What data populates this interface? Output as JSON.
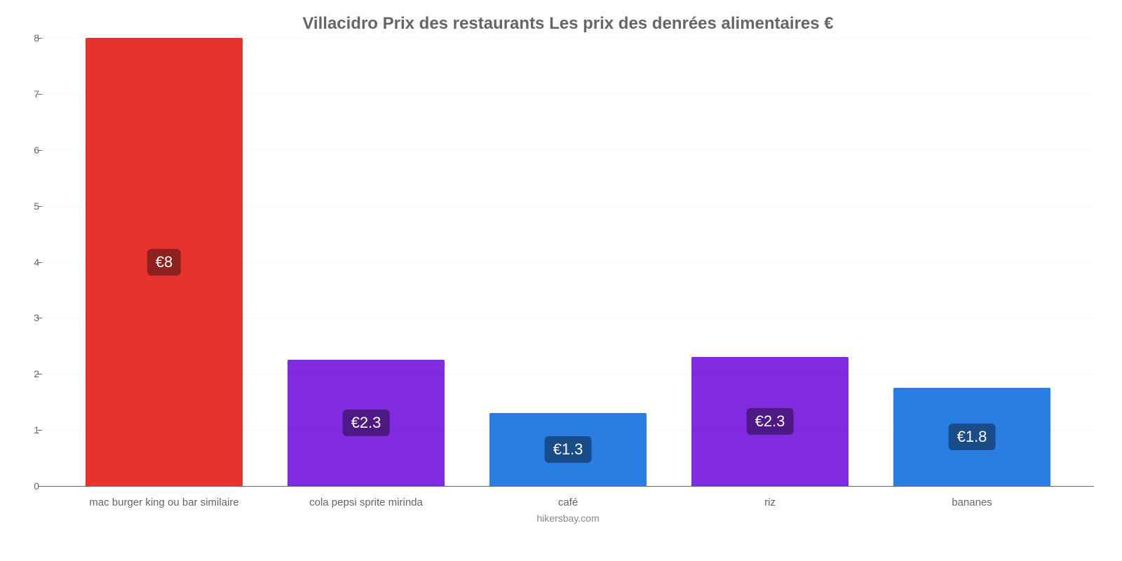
{
  "chart": {
    "type": "bar",
    "title": "Villacidro Prix des restaurants Les prix des denrées alimentaires €",
    "title_fontsize": 24,
    "title_color": "#666666",
    "credit": "hikersbay.com",
    "credit_color": "#888888",
    "y": {
      "min": 0,
      "max": 8,
      "tick_step": 1,
      "tick_color": "#666666",
      "tick_fontsize": 14,
      "grid_color": "rgba(0,0,0,0.04)"
    },
    "background_color": "#ffffff",
    "bar_width_pct": 78,
    "label_fontsize": 15,
    "label_color": "#666666",
    "badge_fontsize": 22,
    "items": [
      {
        "label": "mac burger king ou bar similaire",
        "value": 8.0,
        "display": "€8",
        "bar_color": "#e6332e",
        "badge_bg": "#8e201e"
      },
      {
        "label": "cola pepsi sprite mirinda",
        "value": 2.25,
        "display": "€2.3",
        "bar_color": "#812be0",
        "badge_bg": "#4d1a85"
      },
      {
        "label": "café",
        "value": 1.3,
        "display": "€1.3",
        "bar_color": "#2a7de1",
        "badge_bg": "#1a4c87"
      },
      {
        "label": "riz",
        "value": 2.3,
        "display": "€2.3",
        "bar_color": "#812be0",
        "badge_bg": "#4d1a85"
      },
      {
        "label": "bananes",
        "value": 1.75,
        "display": "€1.8",
        "bar_color": "#2a7de1",
        "badge_bg": "#1a4c87"
      }
    ]
  }
}
